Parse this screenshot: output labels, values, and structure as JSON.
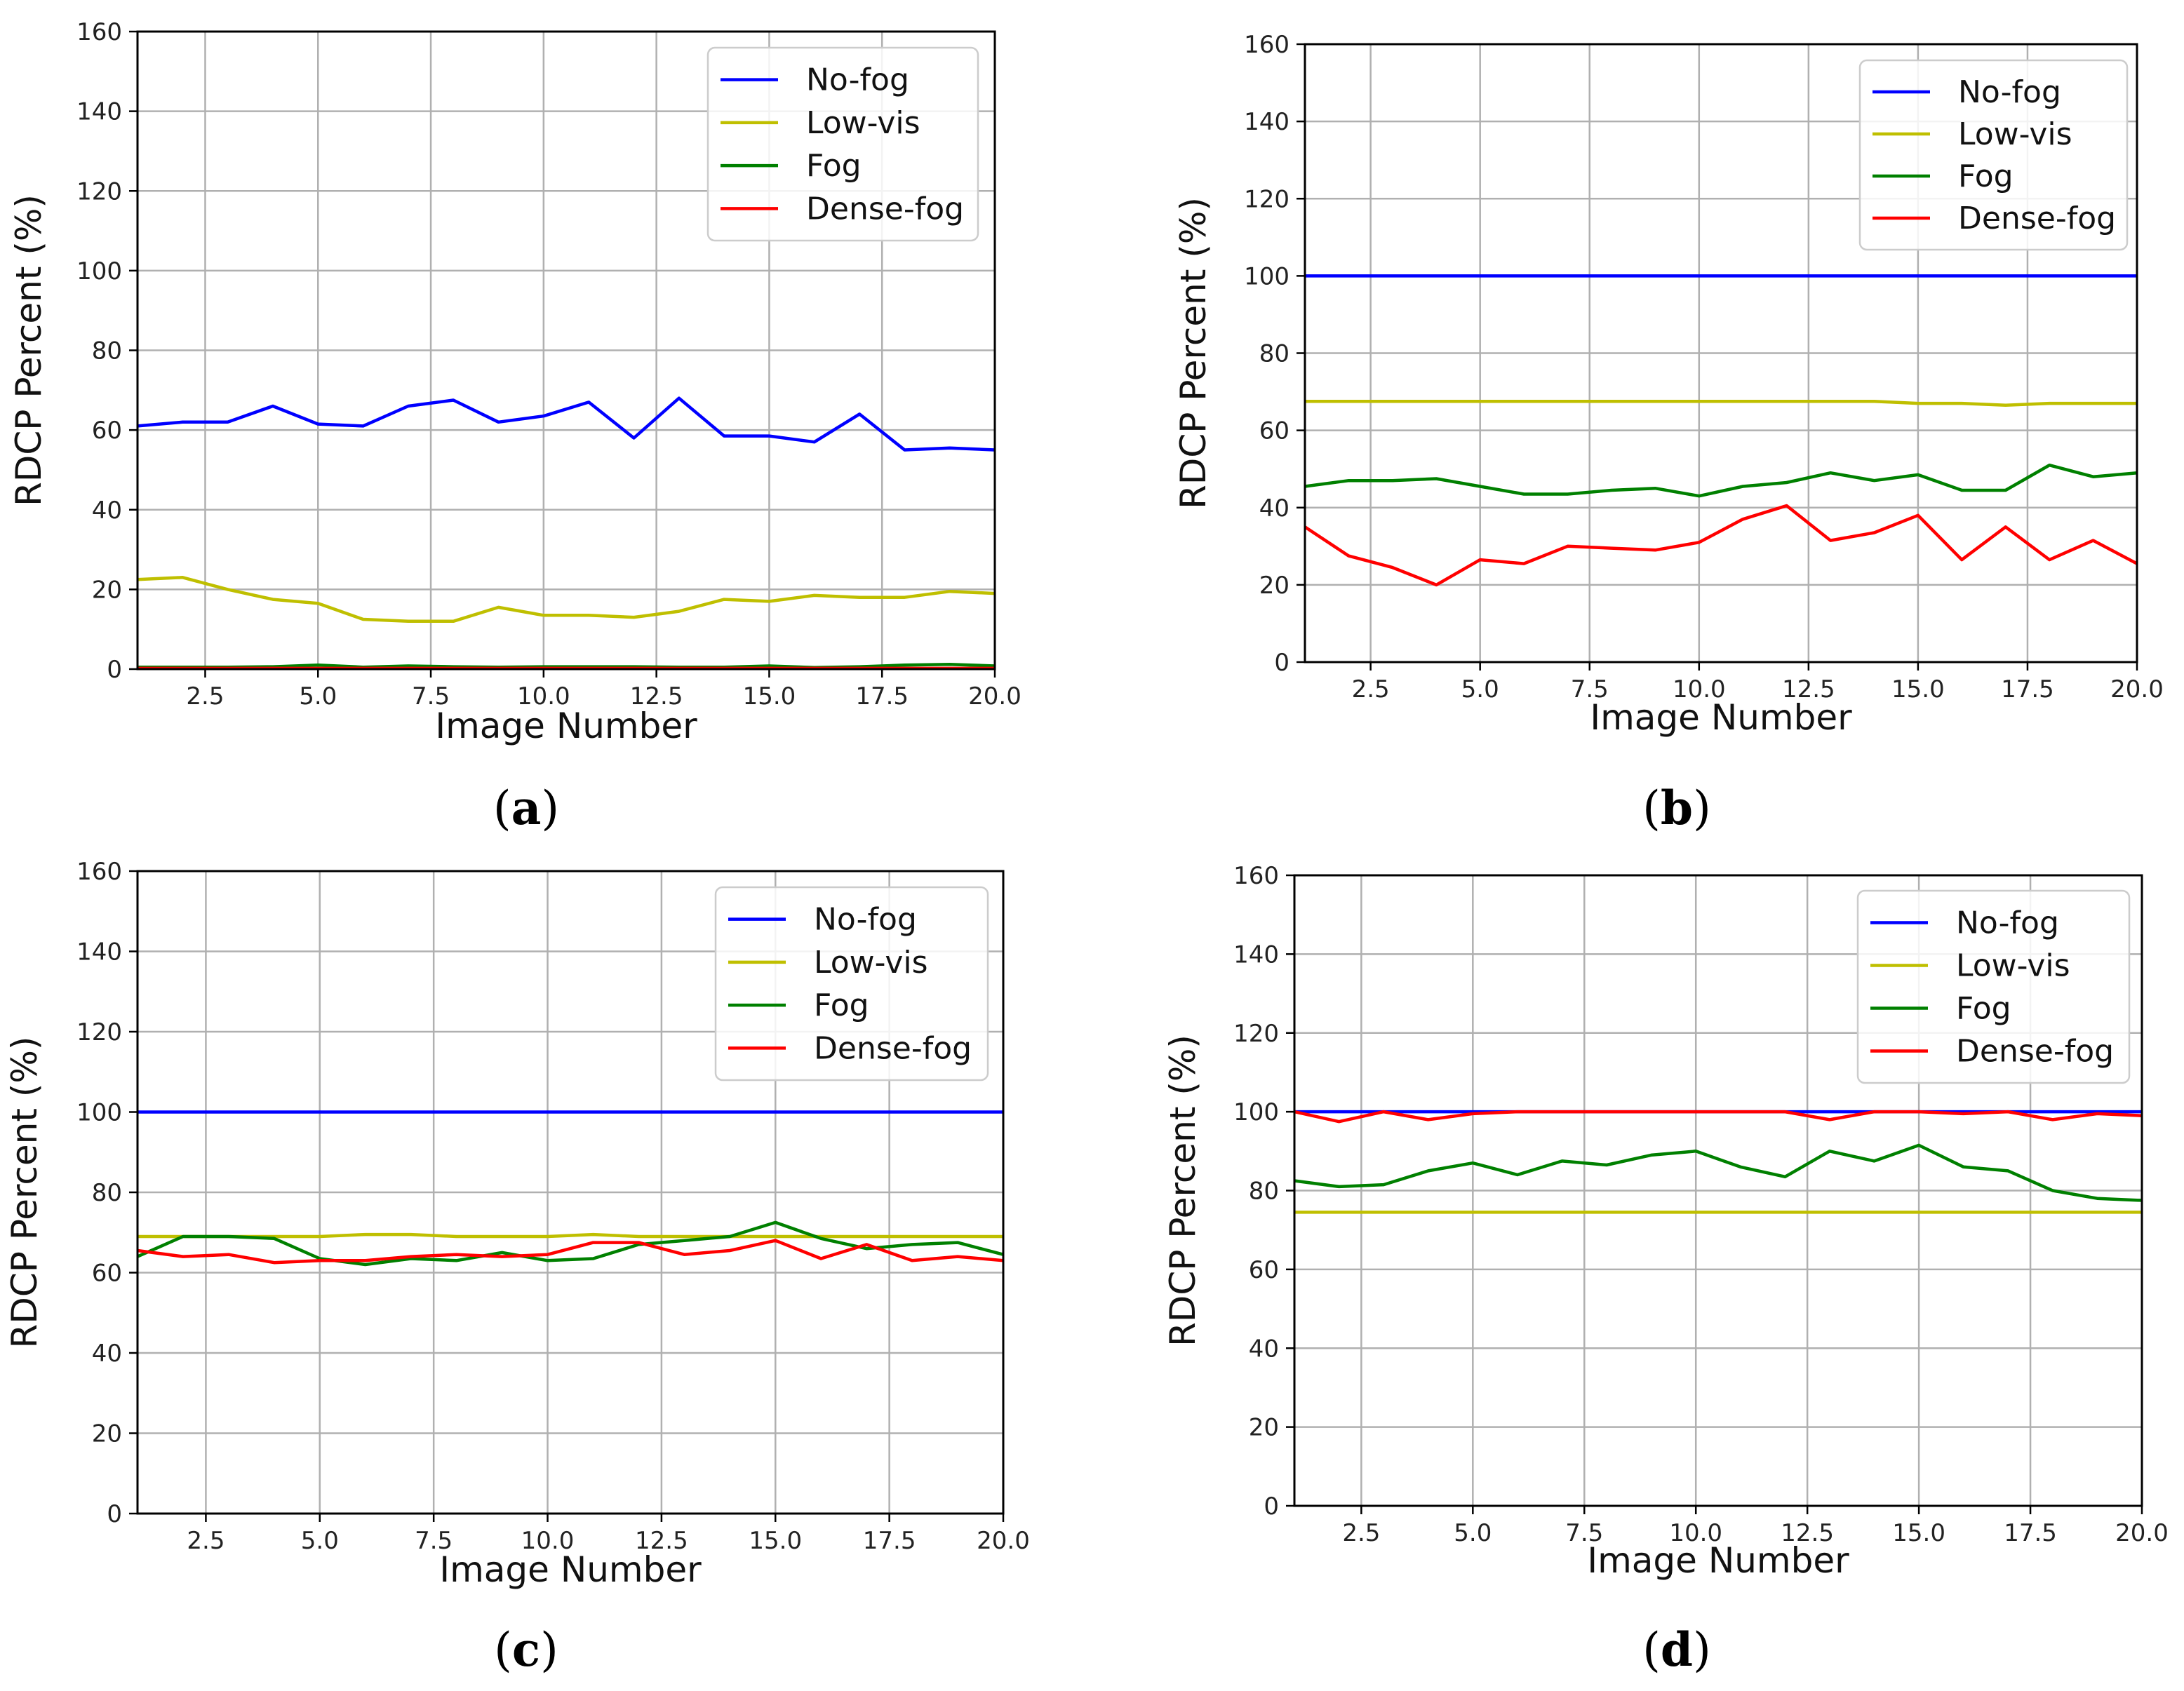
{
  "chart_data": [
    {
      "type": "line",
      "caption_letter": "a",
      "xlabel": "Image Number",
      "ylabel": "RDCP Percent (%)",
      "xlim": [
        1,
        20
      ],
      "ylim": [
        0,
        160
      ],
      "xticks": [
        2.5,
        5.0,
        7.5,
        10.0,
        12.5,
        15.0,
        17.5,
        20.0
      ],
      "xtick_labels": [
        "2.5",
        "5.0",
        "7.5",
        "10.0",
        "12.5",
        "15.0",
        "17.5",
        "20.0"
      ],
      "yticks": [
        0,
        20,
        40,
        60,
        80,
        100,
        120,
        140,
        160
      ],
      "ytick_labels": [
        "0",
        "20",
        "40",
        "60",
        "80",
        "100",
        "120",
        "140",
        "160"
      ],
      "grid": true,
      "legend_position": "top-right",
      "x": [
        1,
        2,
        3,
        4,
        5,
        6,
        7,
        8,
        9,
        10,
        11,
        12,
        13,
        14,
        15,
        16,
        17,
        18,
        19,
        20
      ],
      "series": [
        {
          "name": "No-fog",
          "color": "#0000ff",
          "values": [
            61,
            62,
            62,
            66,
            61.5,
            61,
            66,
            67.5,
            62,
            63.5,
            67,
            58,
            68,
            58.5,
            58.5,
            57,
            64,
            55,
            55.5,
            55
          ]
        },
        {
          "name": "Low-vis",
          "color": "#bfbf00",
          "values": [
            22.5,
            23,
            20,
            17.5,
            16.5,
            12.5,
            12,
            12,
            15.5,
            13.5,
            13.5,
            13,
            14.5,
            17.5,
            17,
            18.5,
            18,
            18,
            19.5,
            19
          ]
        },
        {
          "name": "Fog",
          "color": "#008000",
          "values": [
            0.5,
            0.5,
            0.5,
            0.6,
            1,
            0.5,
            0.8,
            0.6,
            0.5,
            0.6,
            0.6,
            0.6,
            0.5,
            0.5,
            0.8,
            0.4,
            0.6,
            1,
            1.2,
            0.8
          ]
        },
        {
          "name": "Dense-fog",
          "color": "#ff0000",
          "values": [
            0.2,
            0.2,
            0.2,
            0.2,
            0.2,
            0.2,
            0.2,
            0.2,
            0.2,
            0.2,
            0.2,
            0.2,
            0.2,
            0.2,
            0.2,
            0.2,
            0.2,
            0.2,
            0.2,
            0.2
          ]
        }
      ]
    },
    {
      "type": "line",
      "caption_letter": "b",
      "xlabel": "Image Number",
      "ylabel": "RDCP Percent (%)",
      "xlim": [
        1,
        20
      ],
      "ylim": [
        0,
        160
      ],
      "xticks": [
        2.5,
        5.0,
        7.5,
        10.0,
        12.5,
        15.0,
        17.5,
        20.0
      ],
      "xtick_labels": [
        "2.5",
        "5.0",
        "7.5",
        "10.0",
        "12.5",
        "15.0",
        "17.5",
        "20.0"
      ],
      "yticks": [
        0,
        20,
        40,
        60,
        80,
        100,
        120,
        140,
        160
      ],
      "ytick_labels": [
        "0",
        "20",
        "40",
        "60",
        "80",
        "100",
        "120",
        "140",
        "160"
      ],
      "grid": true,
      "legend_position": "top-right",
      "x": [
        1,
        2,
        3,
        4,
        5,
        6,
        7,
        8,
        9,
        10,
        11,
        12,
        13,
        14,
        15,
        16,
        17,
        18,
        19,
        20
      ],
      "series": [
        {
          "name": "No-fog",
          "color": "#0000ff",
          "values": [
            100,
            100,
            100,
            100,
            100,
            100,
            100,
            100,
            100,
            100,
            100,
            100,
            100,
            100,
            100,
            100,
            100,
            100,
            100,
            100
          ]
        },
        {
          "name": "Low-vis",
          "color": "#bfbf00",
          "values": [
            67.5,
            67.5,
            67.5,
            67.5,
            67.5,
            67.5,
            67.5,
            67.5,
            67.5,
            67.5,
            67.5,
            67.5,
            67.5,
            67.5,
            67,
            67,
            66.5,
            67,
            67,
            67
          ]
        },
        {
          "name": "Fog",
          "color": "#008000",
          "values": [
            45.5,
            47,
            47,
            47.5,
            45.5,
            43.5,
            43.5,
            44.5,
            45,
            43,
            45.5,
            46.5,
            49,
            47,
            48.5,
            44.5,
            44.5,
            51,
            48,
            49
          ]
        },
        {
          "name": "Dense-fog",
          "color": "#ff0000",
          "values": [
            35,
            27.5,
            24.5,
            20,
            26.5,
            25.5,
            30,
            29.5,
            29,
            31,
            37,
            40.5,
            31.5,
            33.5,
            38,
            26.5,
            35,
            26.5,
            31.5,
            25.5
          ]
        }
      ]
    },
    {
      "type": "line",
      "caption_letter": "c",
      "xlabel": "Image Number",
      "ylabel": "RDCP Percent (%)",
      "xlim": [
        1,
        20
      ],
      "ylim": [
        0,
        160
      ],
      "xticks": [
        2.5,
        5.0,
        7.5,
        10.0,
        12.5,
        15.0,
        17.5,
        20.0
      ],
      "xtick_labels": [
        "2.5",
        "5.0",
        "7.5",
        "10.0",
        "12.5",
        "15.0",
        "17.5",
        "20.0"
      ],
      "yticks": [
        0,
        20,
        40,
        60,
        80,
        100,
        120,
        140,
        160
      ],
      "ytick_labels": [
        "0",
        "20",
        "40",
        "60",
        "80",
        "100",
        "120",
        "140",
        "160"
      ],
      "grid": true,
      "legend_position": "top-right",
      "x": [
        1,
        2,
        3,
        4,
        5,
        6,
        7,
        8,
        9,
        10,
        11,
        12,
        13,
        14,
        15,
        16,
        17,
        18,
        19,
        20
      ],
      "series": [
        {
          "name": "No-fog",
          "color": "#0000ff",
          "values": [
            100,
            100,
            100,
            100,
            100,
            100,
            100,
            100,
            100,
            100,
            100,
            100,
            100,
            100,
            100,
            100,
            100,
            100,
            100,
            100
          ]
        },
        {
          "name": "Low-vis",
          "color": "#bfbf00",
          "values": [
            69,
            69,
            69,
            69,
            69,
            69.5,
            69.5,
            69,
            69,
            69,
            69.5,
            69,
            69,
            69,
            69,
            69,
            69,
            69,
            69,
            69
          ]
        },
        {
          "name": "Fog",
          "color": "#008000",
          "values": [
            64,
            69,
            69,
            68.5,
            63.5,
            62,
            63.5,
            63,
            65,
            63,
            63.5,
            67,
            68,
            69,
            72.5,
            68.5,
            66,
            67,
            67.5,
            64.5
          ]
        },
        {
          "name": "Dense-fog",
          "color": "#ff0000",
          "values": [
            65.5,
            64,
            64.5,
            62.5,
            63,
            63,
            64,
            64.5,
            64,
            64.5,
            67.5,
            67.5,
            64.5,
            65.5,
            68,
            63.5,
            67,
            63,
            64,
            63
          ]
        }
      ]
    },
    {
      "type": "line",
      "caption_letter": "d",
      "xlabel": "Image Number",
      "ylabel": "RDCP Percent (%)",
      "xlim": [
        1,
        20
      ],
      "ylim": [
        0,
        160
      ],
      "xticks": [
        2.5,
        5.0,
        7.5,
        10.0,
        12.5,
        15.0,
        17.5,
        20.0
      ],
      "xtick_labels": [
        "2.5",
        "5.0",
        "7.5",
        "10.0",
        "12.5",
        "15.0",
        "17.5",
        "20.0"
      ],
      "yticks": [
        0,
        20,
        40,
        60,
        80,
        100,
        120,
        140,
        160
      ],
      "ytick_labels": [
        "0",
        "20",
        "40",
        "60",
        "80",
        "100",
        "120",
        "140",
        "160"
      ],
      "grid": true,
      "legend_position": "top-right",
      "x": [
        1,
        2,
        3,
        4,
        5,
        6,
        7,
        8,
        9,
        10,
        11,
        12,
        13,
        14,
        15,
        16,
        17,
        18,
        19,
        20
      ],
      "series": [
        {
          "name": "No-fog",
          "color": "#0000ff",
          "values": [
            100,
            100,
            100,
            100,
            100,
            100,
            100,
            100,
            100,
            100,
            100,
            100,
            100,
            100,
            100,
            100,
            100,
            100,
            100,
            100
          ]
        },
        {
          "name": "Low-vis",
          "color": "#bfbf00",
          "values": [
            74.5,
            74.5,
            74.5,
            74.5,
            74.5,
            74.5,
            74.5,
            74.5,
            74.5,
            74.5,
            74.5,
            74.5,
            74.5,
            74.5,
            74.5,
            74.5,
            74.5,
            74.5,
            74.5,
            74.5
          ]
        },
        {
          "name": "Fog",
          "color": "#008000",
          "values": [
            82.5,
            81,
            81.5,
            85,
            87,
            84,
            87.5,
            86.5,
            89,
            90,
            86,
            83.5,
            90,
            87.5,
            91.5,
            86,
            85,
            80,
            78,
            77.5
          ]
        },
        {
          "name": "Dense-fog",
          "color": "#ff0000",
          "values": [
            100,
            97.5,
            100,
            98,
            99.5,
            100,
            100,
            100,
            100,
            100,
            100,
            100,
            98,
            100,
            100,
            99.5,
            100,
            98,
            99.5,
            99
          ]
        }
      ]
    }
  ]
}
